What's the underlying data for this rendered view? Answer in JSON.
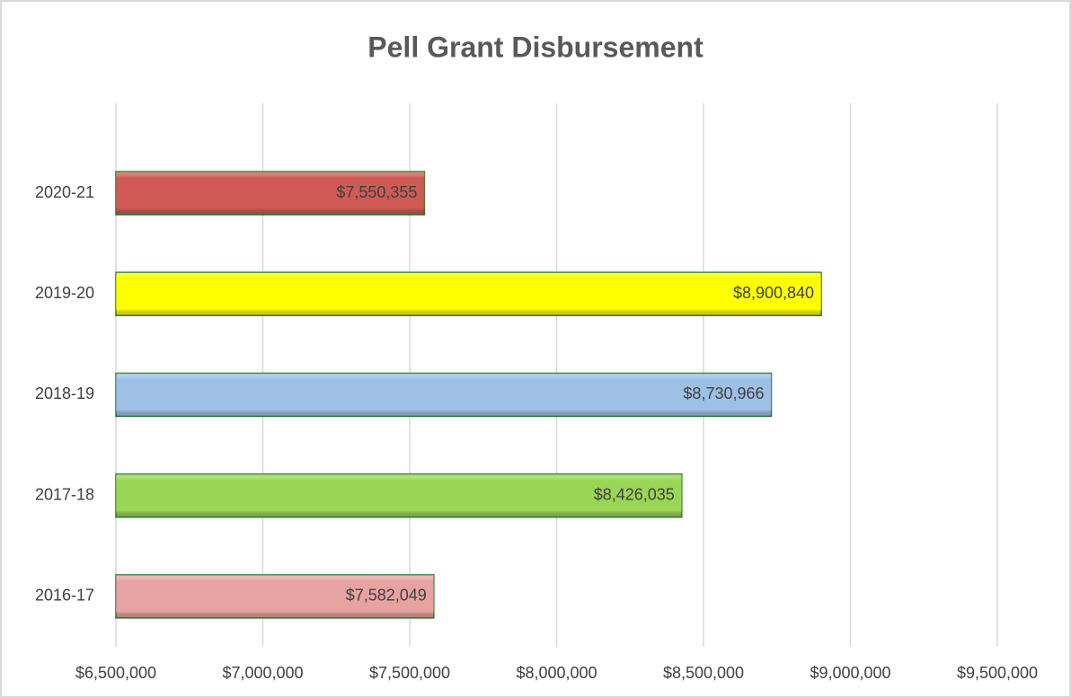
{
  "chart_data": {
    "type": "barh",
    "title": "Pell Grant Disbursement",
    "categories": [
      "2016-17",
      "2017-18",
      "2018-19",
      "2019-20",
      "2020-21"
    ],
    "values": [
      7582049,
      8426035,
      8730966,
      8900840,
      7550355
    ],
    "value_labels": [
      "$7,582,049",
      "$8,426,035",
      "$8,730,966",
      "$8,900,840",
      "$7,550,355"
    ],
    "colors": [
      "#e6a3a1",
      "#9ad655",
      "#9fc0e6",
      "#ffff00",
      "#cf5a56"
    ],
    "xlim": [
      6500000,
      9500000
    ],
    "xticks": [
      {
        "value": 6500000,
        "label": "$6,500,000"
      },
      {
        "value": 7000000,
        "label": "$7,000,000"
      },
      {
        "value": 7500000,
        "label": "$7,500,000"
      },
      {
        "value": 8000000,
        "label": "$8,000,000"
      },
      {
        "value": 8500000,
        "label": "$8,500,000"
      },
      {
        "value": 9000000,
        "label": "$9,000,000"
      },
      {
        "value": 9500000,
        "label": "$9,500,000"
      }
    ],
    "grid": true
  }
}
